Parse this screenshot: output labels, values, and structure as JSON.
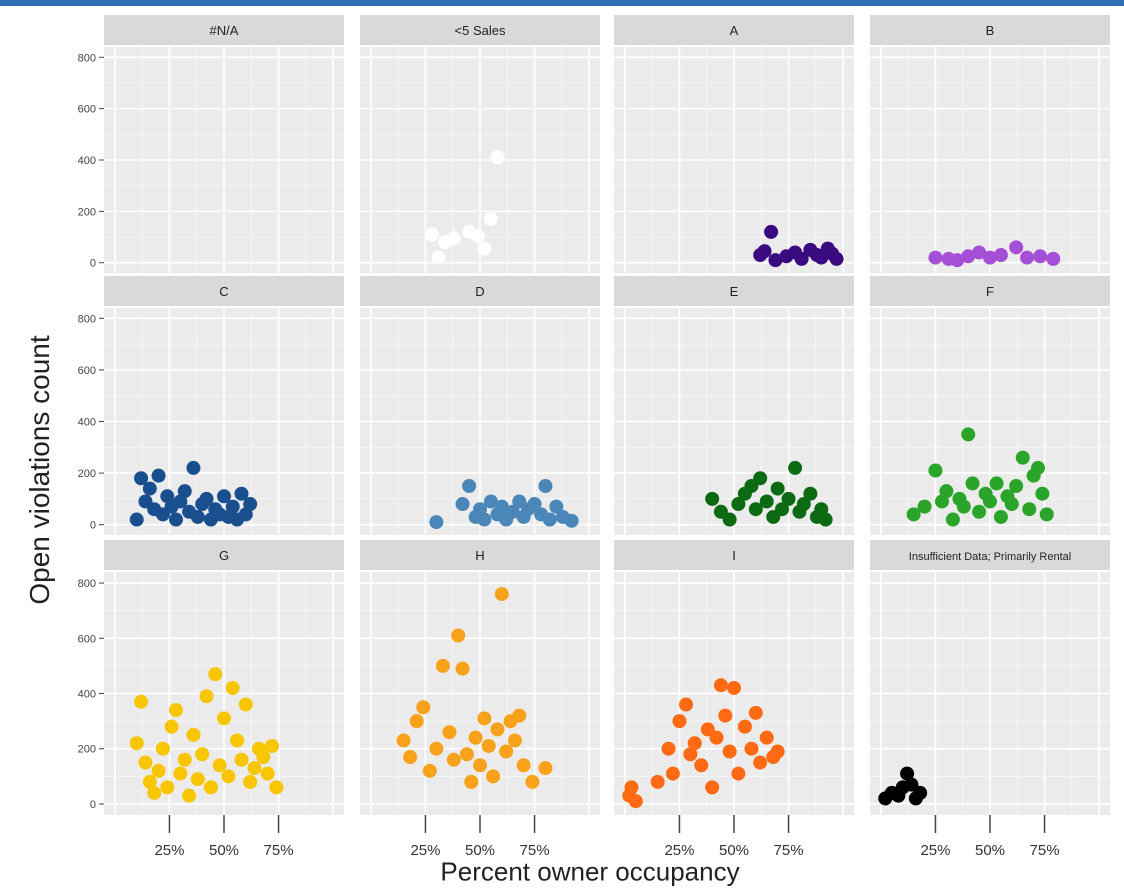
{
  "chart_data": {
    "type": "scatter",
    "facets": [
      "#N/A",
      "<5 Sales",
      "A",
      "B",
      "C",
      "D",
      "E",
      "F",
      "G",
      "H",
      "I",
      "Insufficient Data; Primarily Rental"
    ],
    "xlabel": "Percent owner occupancy",
    "ylabel": "Open violations count",
    "xlim": [
      0,
      1.0
    ],
    "ylim": [
      0,
      800
    ],
    "xticks": [
      0.25,
      0.5,
      0.75
    ],
    "xtick_labels": [
      "25%",
      "50%",
      "75%"
    ],
    "yticks": [
      0,
      200,
      400,
      600,
      800
    ],
    "ytick_labels": [
      "0",
      "200",
      "400",
      "600",
      "800"
    ],
    "grid": true,
    "legend": "none",
    "colors": {
      "#N/A": "#ffffff",
      "<5 Sales": "#ffffff",
      "A": "#3a0a80",
      "B": "#a54fd6",
      "C": "#1a4f8f",
      "D": "#4a87b8",
      "E": "#0c6b12",
      "F": "#2aa52a",
      "G": "#f7c600",
      "H": "#f7a21a",
      "I": "#ff6a13",
      "Insufficient Data; Primarily Rental": "#000000"
    },
    "series": [
      {
        "name": "#N/A",
        "points": []
      },
      {
        "name": "<5 Sales",
        "points": [
          [
            0.28,
            110
          ],
          [
            0.31,
            20
          ],
          [
            0.34,
            80
          ],
          [
            0.38,
            95
          ],
          [
            0.45,
            120
          ],
          [
            0.49,
            105
          ],
          [
            0.52,
            55
          ],
          [
            0.55,
            170
          ],
          [
            0.58,
            410
          ]
        ]
      },
      {
        "name": "A",
        "points": [
          [
            0.62,
            30
          ],
          [
            0.64,
            45
          ],
          [
            0.67,
            120
          ],
          [
            0.69,
            10
          ],
          [
            0.74,
            25
          ],
          [
            0.78,
            40
          ],
          [
            0.81,
            15
          ],
          [
            0.85,
            50
          ],
          [
            0.88,
            30
          ],
          [
            0.9,
            20
          ],
          [
            0.93,
            55
          ],
          [
            0.95,
            35
          ],
          [
            0.97,
            15
          ]
        ]
      },
      {
        "name": "B",
        "points": [
          [
            0.25,
            20
          ],
          [
            0.31,
            15
          ],
          [
            0.35,
            10
          ],
          [
            0.4,
            25
          ],
          [
            0.45,
            40
          ],
          [
            0.5,
            20
          ],
          [
            0.55,
            30
          ],
          [
            0.62,
            60
          ],
          [
            0.67,
            20
          ],
          [
            0.73,
            25
          ],
          [
            0.79,
            15
          ]
        ]
      },
      {
        "name": "C",
        "points": [
          [
            0.1,
            20
          ],
          [
            0.12,
            180
          ],
          [
            0.14,
            90
          ],
          [
            0.16,
            140
          ],
          [
            0.18,
            60
          ],
          [
            0.2,
            190
          ],
          [
            0.22,
            40
          ],
          [
            0.24,
            110
          ],
          [
            0.26,
            70
          ],
          [
            0.28,
            20
          ],
          [
            0.3,
            90
          ],
          [
            0.32,
            130
          ],
          [
            0.34,
            50
          ],
          [
            0.36,
            220
          ],
          [
            0.38,
            30
          ],
          [
            0.4,
            80
          ],
          [
            0.42,
            100
          ],
          [
            0.44,
            20
          ],
          [
            0.46,
            60
          ],
          [
            0.48,
            40
          ],
          [
            0.5,
            110
          ],
          [
            0.52,
            30
          ],
          [
            0.54,
            70
          ],
          [
            0.56,
            20
          ],
          [
            0.58,
            120
          ],
          [
            0.6,
            40
          ],
          [
            0.62,
            80
          ]
        ]
      },
      {
        "name": "D",
        "points": [
          [
            0.3,
            10
          ],
          [
            0.42,
            80
          ],
          [
            0.45,
            150
          ],
          [
            0.48,
            30
          ],
          [
            0.5,
            60
          ],
          [
            0.52,
            20
          ],
          [
            0.55,
            90
          ],
          [
            0.58,
            40
          ],
          [
            0.6,
            70
          ],
          [
            0.62,
            20
          ],
          [
            0.65,
            50
          ],
          [
            0.68,
            90
          ],
          [
            0.7,
            30
          ],
          [
            0.72,
            60
          ],
          [
            0.75,
            80
          ],
          [
            0.78,
            40
          ],
          [
            0.8,
            150
          ],
          [
            0.82,
            20
          ],
          [
            0.85,
            70
          ],
          [
            0.88,
            30
          ],
          [
            0.92,
            15
          ]
        ]
      },
      {
        "name": "E",
        "points": [
          [
            0.4,
            100
          ],
          [
            0.44,
            50
          ],
          [
            0.48,
            20
          ],
          [
            0.52,
            80
          ],
          [
            0.55,
            120
          ],
          [
            0.58,
            150
          ],
          [
            0.6,
            60
          ],
          [
            0.62,
            180
          ],
          [
            0.65,
            90
          ],
          [
            0.68,
            30
          ],
          [
            0.7,
            140
          ],
          [
            0.72,
            60
          ],
          [
            0.75,
            100
          ],
          [
            0.78,
            220
          ],
          [
            0.8,
            50
          ],
          [
            0.82,
            80
          ],
          [
            0.85,
            120
          ],
          [
            0.88,
            30
          ],
          [
            0.9,
            60
          ],
          [
            0.92,
            20
          ]
        ]
      },
      {
        "name": "F",
        "points": [
          [
            0.15,
            40
          ],
          [
            0.2,
            70
          ],
          [
            0.25,
            210
          ],
          [
            0.28,
            90
          ],
          [
            0.3,
            130
          ],
          [
            0.33,
            20
          ],
          [
            0.36,
            100
          ],
          [
            0.38,
            70
          ],
          [
            0.4,
            350
          ],
          [
            0.42,
            160
          ],
          [
            0.45,
            50
          ],
          [
            0.48,
            120
          ],
          [
            0.5,
            90
          ],
          [
            0.53,
            160
          ],
          [
            0.55,
            30
          ],
          [
            0.58,
            110
          ],
          [
            0.6,
            80
          ],
          [
            0.62,
            150
          ],
          [
            0.65,
            260
          ],
          [
            0.68,
            60
          ],
          [
            0.7,
            190
          ],
          [
            0.72,
            220
          ],
          [
            0.74,
            120
          ],
          [
            0.76,
            40
          ]
        ]
      },
      {
        "name": "G",
        "points": [
          [
            0.1,
            220
          ],
          [
            0.12,
            370
          ],
          [
            0.14,
            150
          ],
          [
            0.16,
            80
          ],
          [
            0.18,
            40
          ],
          [
            0.2,
            120
          ],
          [
            0.22,
            200
          ],
          [
            0.24,
            60
          ],
          [
            0.26,
            280
          ],
          [
            0.28,
            340
          ],
          [
            0.3,
            110
          ],
          [
            0.32,
            160
          ],
          [
            0.34,
            30
          ],
          [
            0.36,
            250
          ],
          [
            0.38,
            90
          ],
          [
            0.4,
            180
          ],
          [
            0.42,
            390
          ],
          [
            0.44,
            60
          ],
          [
            0.46,
            470
          ],
          [
            0.48,
            140
          ],
          [
            0.5,
            310
          ],
          [
            0.52,
            100
          ],
          [
            0.54,
            420
          ],
          [
            0.56,
            230
          ],
          [
            0.58,
            160
          ],
          [
            0.6,
            360
          ],
          [
            0.62,
            80
          ],
          [
            0.64,
            130
          ],
          [
            0.66,
            200
          ],
          [
            0.68,
            170
          ],
          [
            0.7,
            110
          ],
          [
            0.72,
            210
          ],
          [
            0.74,
            60
          ]
        ]
      },
      {
        "name": "H",
        "points": [
          [
            0.15,
            230
          ],
          [
            0.18,
            170
          ],
          [
            0.21,
            300
          ],
          [
            0.24,
            350
          ],
          [
            0.27,
            120
          ],
          [
            0.3,
            200
          ],
          [
            0.33,
            500
          ],
          [
            0.36,
            260
          ],
          [
            0.38,
            160
          ],
          [
            0.4,
            610
          ],
          [
            0.42,
            490
          ],
          [
            0.44,
            180
          ],
          [
            0.46,
            80
          ],
          [
            0.48,
            240
          ],
          [
            0.5,
            140
          ],
          [
            0.52,
            310
          ],
          [
            0.54,
            210
          ],
          [
            0.56,
            100
          ],
          [
            0.58,
            270
          ],
          [
            0.6,
            760
          ],
          [
            0.62,
            190
          ],
          [
            0.64,
            300
          ],
          [
            0.66,
            230
          ],
          [
            0.68,
            320
          ],
          [
            0.7,
            140
          ],
          [
            0.74,
            80
          ],
          [
            0.8,
            130
          ]
        ]
      },
      {
        "name": "I",
        "points": [
          [
            0.02,
            30
          ],
          [
            0.03,
            60
          ],
          [
            0.05,
            10
          ],
          [
            0.15,
            80
          ],
          [
            0.2,
            200
          ],
          [
            0.22,
            110
          ],
          [
            0.25,
            300
          ],
          [
            0.28,
            360
          ],
          [
            0.3,
            180
          ],
          [
            0.32,
            220
          ],
          [
            0.35,
            140
          ],
          [
            0.38,
            270
          ],
          [
            0.4,
            60
          ],
          [
            0.42,
            240
          ],
          [
            0.44,
            430
          ],
          [
            0.46,
            320
          ],
          [
            0.48,
            190
          ],
          [
            0.5,
            420
          ],
          [
            0.52,
            110
          ],
          [
            0.55,
            280
          ],
          [
            0.58,
            200
          ],
          [
            0.6,
            330
          ],
          [
            0.62,
            150
          ],
          [
            0.65,
            240
          ],
          [
            0.68,
            170
          ],
          [
            0.7,
            190
          ]
        ]
      },
      {
        "name": "Insufficient Data; Primarily Rental",
        "points": [
          [
            0.02,
            20
          ],
          [
            0.05,
            40
          ],
          [
            0.08,
            30
          ],
          [
            0.1,
            60
          ],
          [
            0.12,
            110
          ],
          [
            0.14,
            70
          ],
          [
            0.16,
            20
          ],
          [
            0.18,
            40
          ]
        ]
      }
    ]
  }
}
